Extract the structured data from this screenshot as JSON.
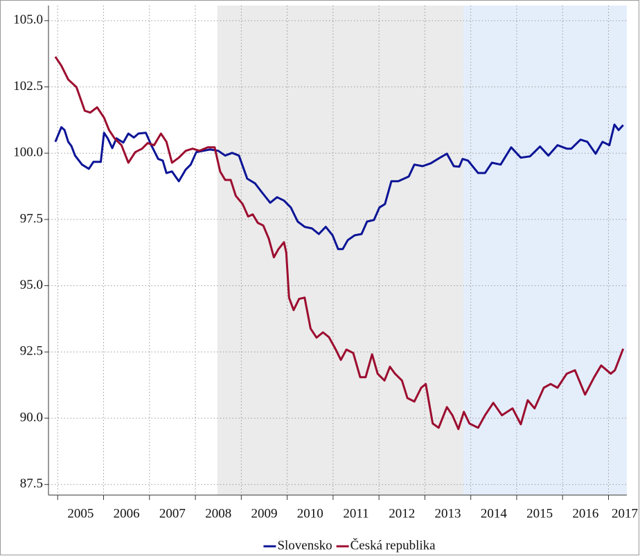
{
  "chart_data": {
    "type": "line",
    "xlim": [
      2004.8,
      2017.4
    ],
    "ylim": [
      87.1,
      105.57
    ],
    "xticks": [
      2005,
      2006,
      2007,
      2008,
      2009,
      2010,
      2011,
      2012,
      2013,
      2014,
      2015,
      2016,
      2017
    ],
    "yticks": [
      {
        "value": 87.5,
        "label": "87.5"
      },
      {
        "value": 90,
        "label": "90.0"
      },
      {
        "value": 92.5,
        "label": "92.5"
      },
      {
        "value": 95,
        "label": "95.0"
      },
      {
        "value": 97.5,
        "label": "97.5"
      },
      {
        "value": 100,
        "label": "100.0"
      },
      {
        "value": 102.5,
        "label": "102.5"
      },
      {
        "value": 105,
        "label": "105.0"
      }
    ],
    "grid": true,
    "bands": [
      {
        "from": 2008.48,
        "to": 2013.84,
        "color": "#ebebeb"
      },
      {
        "from": 2013.84,
        "to": 2017.4,
        "color": "#e4eefb"
      }
    ],
    "legend": "bottom",
    "series": [
      {
        "name": "Slovensko",
        "color": "#0c1496",
        "x": [
          2004.95,
          2005.08,
          2005.15,
          2005.23,
          2005.3,
          2005.38,
          2005.53,
          2005.68,
          2005.78,
          2005.94,
          2006.01,
          2006.09,
          2006.19,
          2006.28,
          2006.43,
          2006.54,
          2006.66,
          2006.76,
          2006.92,
          2007.04,
          2007.19,
          2007.29,
          2007.37,
          2007.49,
          2007.64,
          2007.79,
          2007.9,
          2008.02,
          2008.17,
          2008.32,
          2008.5,
          2008.65,
          2008.8,
          2008.95,
          2009.13,
          2009.3,
          2009.45,
          2009.63,
          2009.78,
          2009.93,
          2010.08,
          2010.23,
          2010.38,
          2010.54,
          2010.69,
          2010.84,
          2010.99,
          2011.11,
          2011.21,
          2011.32,
          2011.47,
          2011.62,
          2011.74,
          2011.89,
          2012.01,
          2012.13,
          2012.27,
          2012.42,
          2012.65,
          2012.77,
          2012.95,
          2013.13,
          2013.33,
          2013.48,
          2013.63,
          2013.75,
          2013.82,
          2013.94,
          2014.16,
          2014.31,
          2014.46,
          2014.65,
          2014.88,
          2015.09,
          2015.29,
          2015.51,
          2015.69,
          2015.89,
          2016.09,
          2016.19,
          2016.39,
          2016.54,
          2016.72,
          2016.87,
          2017.02,
          2017.13,
          2017.22,
          2017.32
        ],
        "values": [
          100.43,
          100.98,
          100.87,
          100.43,
          100.27,
          99.91,
          99.57,
          99.41,
          99.67,
          99.67,
          100.77,
          100.56,
          100.19,
          100.56,
          100.4,
          100.74,
          100.59,
          100.74,
          100.77,
          100.3,
          99.78,
          99.72,
          99.25,
          99.31,
          98.94,
          99.38,
          99.57,
          100.04,
          100.09,
          100.14,
          100.09,
          99.91,
          100.01,
          99.91,
          99.04,
          98.86,
          98.52,
          98.13,
          98.34,
          98.21,
          97.95,
          97.42,
          97.22,
          97.16,
          96.95,
          97.22,
          96.9,
          96.38,
          96.38,
          96.72,
          96.9,
          96.95,
          97.42,
          97.48,
          97.95,
          98.08,
          98.94,
          98.94,
          99.12,
          99.57,
          99.51,
          99.62,
          99.83,
          99.98,
          99.51,
          99.49,
          99.78,
          99.72,
          99.25,
          99.25,
          99.64,
          99.57,
          100.22,
          99.83,
          99.88,
          100.25,
          99.91,
          100.3,
          100.17,
          100.17,
          100.51,
          100.43,
          99.98,
          100.43,
          100.3,
          101.08,
          100.87,
          101.06
        ]
      },
      {
        "name": "Česká republika",
        "color": "#9c0d2f",
        "x": [
          2004.95,
          2005.08,
          2005.23,
          2005.41,
          2005.59,
          2005.71,
          2005.86,
          2006.01,
          2006.12,
          2006.24,
          2006.39,
          2006.54,
          2006.69,
          2006.84,
          2006.96,
          2007.1,
          2007.25,
          2007.37,
          2007.49,
          2007.64,
          2007.79,
          2007.94,
          2008.09,
          2008.27,
          2008.42,
          2008.54,
          2008.65,
          2008.77,
          2008.88,
          2009.03,
          2009.15,
          2009.25,
          2009.36,
          2009.48,
          2009.6,
          2009.71,
          2009.81,
          2009.93,
          2009.98,
          2010.04,
          2010.14,
          2010.26,
          2010.38,
          2010.51,
          2010.64,
          2010.78,
          2010.91,
          2011.06,
          2011.17,
          2011.29,
          2011.44,
          2011.59,
          2011.71,
          2011.85,
          2011.97,
          2012.12,
          2012.24,
          2012.35,
          2012.5,
          2012.62,
          2012.77,
          2012.92,
          2013.02,
          2013.17,
          2013.3,
          2013.48,
          2013.6,
          2013.73,
          2013.85,
          2013.97,
          2014.16,
          2014.31,
          2014.49,
          2014.68,
          2014.91,
          2015.09,
          2015.24,
          2015.39,
          2015.59,
          2015.74,
          2015.89,
          2016.09,
          2016.27,
          2016.49,
          2016.69,
          2016.84,
          2017.05,
          2017.14,
          2017.32
        ],
        "values": [
          103.64,
          103.3,
          102.78,
          102.49,
          101.6,
          101.53,
          101.73,
          101.34,
          100.87,
          100.56,
          100.3,
          99.64,
          100.04,
          100.17,
          100.38,
          100.3,
          100.74,
          100.43,
          99.64,
          99.83,
          100.09,
          100.17,
          100.09,
          100.22,
          100.22,
          99.31,
          98.99,
          98.99,
          98.39,
          98.08,
          97.61,
          97.69,
          97.37,
          97.27,
          96.77,
          96.07,
          96.38,
          96.64,
          96.25,
          94.55,
          94.08,
          94.5,
          94.55,
          93.38,
          93.04,
          93.24,
          93.06,
          92.59,
          92.2,
          92.59,
          92.46,
          91.55,
          91.55,
          92.41,
          91.68,
          91.42,
          91.94,
          91.68,
          91.42,
          90.76,
          90.63,
          91.15,
          91.29,
          89.8,
          89.64,
          90.42,
          90.11,
          89.59,
          90.24,
          89.8,
          89.64,
          90.11,
          90.58,
          90.11,
          90.37,
          89.77,
          90.68,
          90.37,
          91.15,
          91.29,
          91.15,
          91.68,
          91.81,
          90.89,
          91.55,
          91.99,
          91.68,
          91.81,
          92.62
        ]
      }
    ]
  }
}
